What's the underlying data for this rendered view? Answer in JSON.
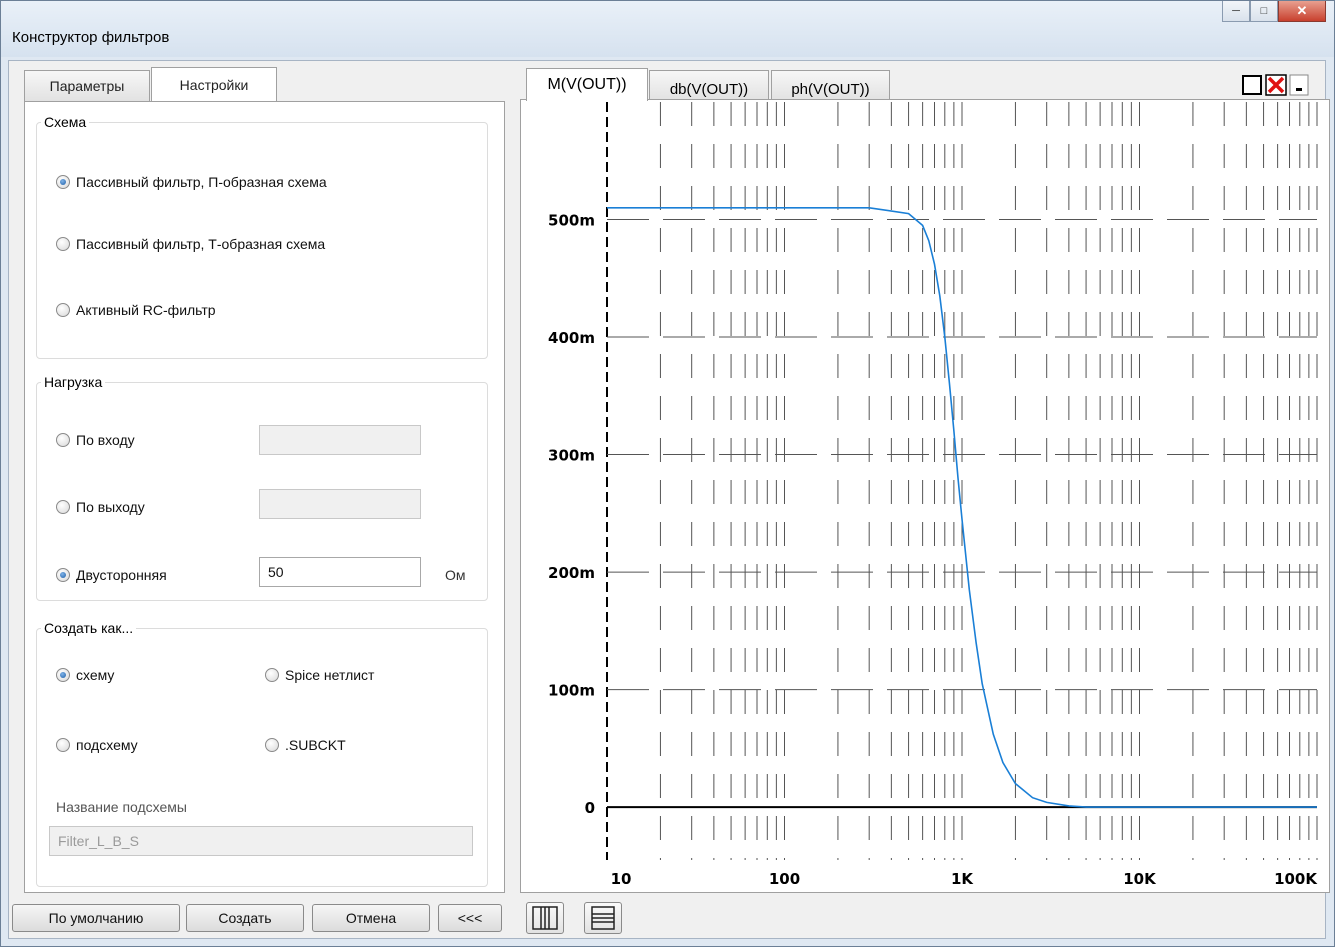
{
  "window": {
    "title": "Конструктор фильтров"
  },
  "left_tabs": [
    {
      "label": "Параметры",
      "active": false
    },
    {
      "label": "Настройки",
      "active": true
    }
  ],
  "schema": {
    "legend": "Схема",
    "options": [
      {
        "label": "Пассивный фильтр, П-образная схема",
        "selected": true
      },
      {
        "label": "Пассивный фильтр, Т-образная схема",
        "selected": false
      },
      {
        "label": "Активный RC-фильтр",
        "selected": false
      }
    ]
  },
  "load": {
    "legend": "Нагрузка",
    "options": [
      {
        "label": "По входу",
        "selected": false,
        "value": ""
      },
      {
        "label": "По выходу",
        "selected": false,
        "value": ""
      },
      {
        "label": "Двусторонняя",
        "selected": true,
        "value": "50"
      }
    ],
    "unit": "Ом"
  },
  "create_as": {
    "legend": "Создать как...",
    "options": [
      {
        "label": "схему",
        "selected": true
      },
      {
        "label": "Spice нетлист",
        "selected": false
      },
      {
        "label": "подсхему",
        "selected": false
      },
      {
        "label": ".SUBCKT",
        "selected": false
      }
    ],
    "subcircuit_label": "Название подсхемы",
    "subcircuit_value": "Filter_L_B_S"
  },
  "buttons": {
    "default": "По умолчанию",
    "create": "Создать",
    "cancel": "Отмена",
    "collapse": "<<<"
  },
  "plot_tabs": [
    {
      "label": "M(V(OUT))",
      "active": true
    },
    {
      "label": "db(V(OUT))",
      "active": false
    },
    {
      "label": "ph(V(OUT))",
      "active": false
    }
  ],
  "colors": {
    "trace": "#1a7fd6",
    "grid": "#555555",
    "accent_close": "#e01010"
  },
  "chart_data": {
    "type": "line",
    "x_scale": "log",
    "xlim": [
      10,
      100000
    ],
    "ylim": [
      -0.045,
      0.6
    ],
    "x_ticks": [
      10,
      100,
      1000,
      10000,
      100000
    ],
    "x_tick_labels": [
      "10",
      "100",
      "1K",
      "10K",
      "100K"
    ],
    "y_ticks": [
      0,
      0.1,
      0.2,
      0.3,
      0.4,
      0.5
    ],
    "y_tick_labels": [
      "0",
      "100m",
      "200m",
      "300m",
      "400m",
      "500m"
    ],
    "series": [
      {
        "x": [
          10,
          100,
          300,
          500,
          600,
          650,
          700,
          750,
          800,
          850,
          900,
          950,
          1000,
          1100,
          1200,
          1300,
          1500,
          1700,
          2000,
          2500,
          3000,
          4000,
          5000,
          10000,
          100000
        ],
        "y": [
          0.51,
          0.51,
          0.51,
          0.505,
          0.495,
          0.482,
          0.462,
          0.435,
          0.4,
          0.36,
          0.32,
          0.28,
          0.245,
          0.185,
          0.14,
          0.105,
          0.062,
          0.038,
          0.02,
          0.008,
          0.004,
          0.001,
          0.0,
          0.0,
          0.0
        ]
      }
    ],
    "grid": true
  }
}
